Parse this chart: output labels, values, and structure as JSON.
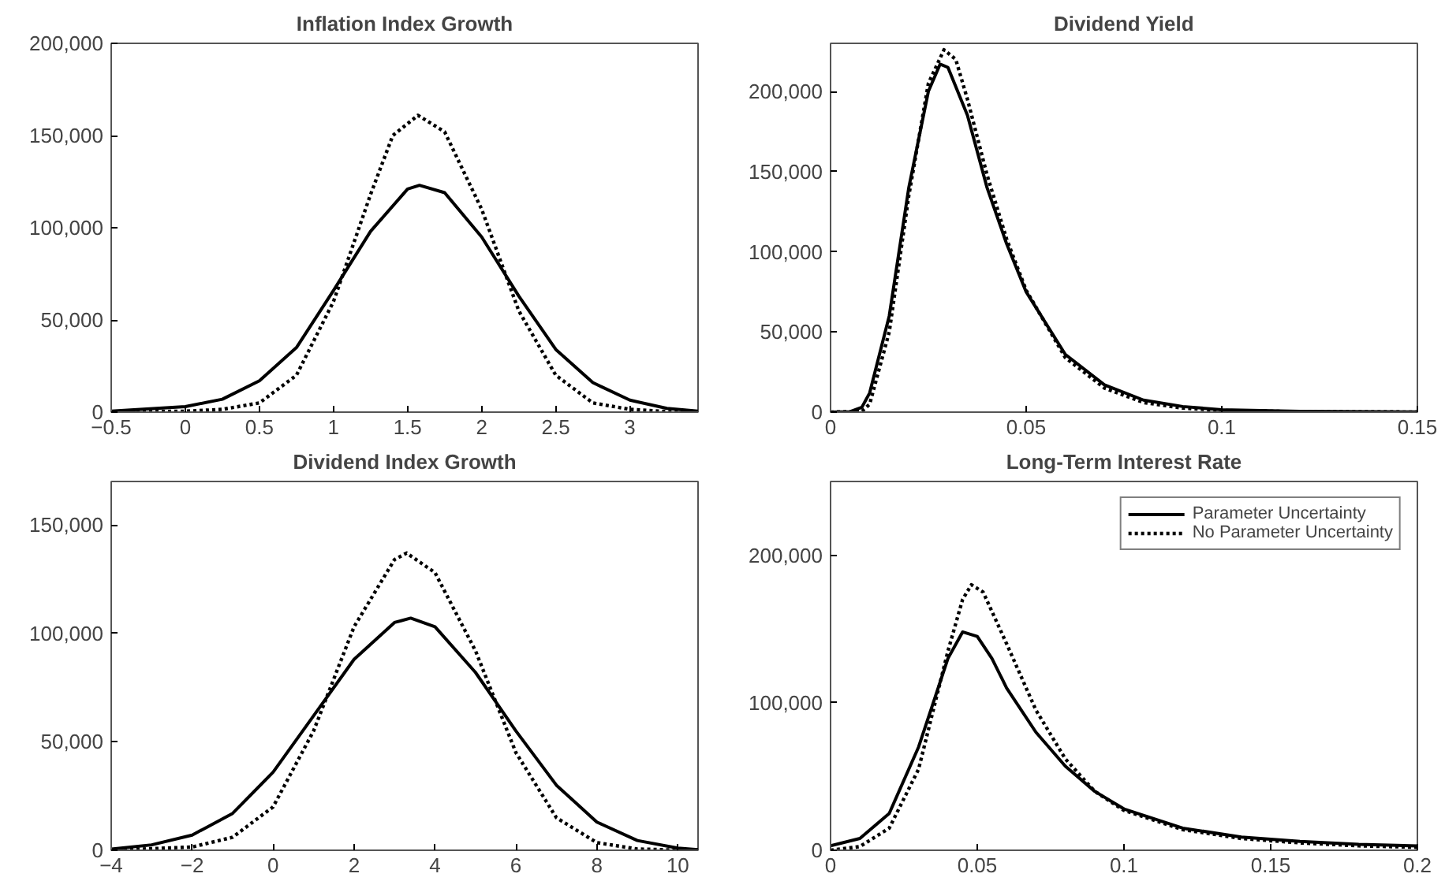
{
  "chart_data": [
    {
      "type": "line",
      "title": "Inflation Index Growth",
      "xlim": [
        -0.5,
        3.46
      ],
      "ylim": [
        0,
        200000
      ],
      "xticks": [
        {
          "value": -0.5,
          "label": "−0.5"
        },
        0,
        0.5,
        1,
        1.5,
        2,
        2.5,
        3
      ],
      "yticks": [
        0,
        {
          "value": 50000,
          "label": "50,000"
        },
        {
          "value": 100000,
          "label": "100,000"
        },
        {
          "value": 150000,
          "label": "150,000"
        },
        {
          "value": 200000,
          "label": "200,000"
        }
      ],
      "grid": false,
      "legend": false,
      "series": [
        {
          "color": "#000000",
          "line_style": "solid",
          "x": [
            -0.5,
            0,
            0.25,
            0.5,
            0.75,
            1,
            1.25,
            1.5,
            1.58,
            1.75,
            2,
            2.25,
            2.5,
            2.75,
            3,
            3.25,
            3.46
          ],
          "values": [
            500,
            3000,
            7000,
            17000,
            35000,
            66000,
            98000,
            121000,
            123000,
            119000,
            95000,
            63000,
            34000,
            16000,
            6500,
            2000,
            500
          ]
        },
        {
          "color": "#000000",
          "line_style": "dotted",
          "x": [
            -0.5,
            0,
            0.25,
            0.5,
            0.75,
            1,
            1.25,
            1.4,
            1.57,
            1.75,
            2,
            2.25,
            2.5,
            2.75,
            3,
            3.25,
            3.46
          ],
          "values": [
            0,
            500,
            1500,
            5000,
            20000,
            60000,
            118000,
            150000,
            161000,
            152000,
            110000,
            55000,
            20000,
            5000,
            1500,
            300,
            0
          ]
        }
      ]
    },
    {
      "type": "line",
      "title": "Dividend Yield",
      "xlim": [
        0,
        0.15
      ],
      "ylim": [
        0,
        230000
      ],
      "xticks": [
        0,
        0.05,
        0.1,
        0.15
      ],
      "yticks": [
        0,
        {
          "value": 50000,
          "label": "50,000"
        },
        {
          "value": 100000,
          "label": "100,000"
        },
        {
          "value": 150000,
          "label": "150,000"
        },
        {
          "value": 200000,
          "label": "200,000"
        }
      ],
      "grid": false,
      "legend": false,
      "series": [
        {
          "color": "#000000",
          "line_style": "solid",
          "x": [
            0,
            0.005,
            0.008,
            0.01,
            0.015,
            0.02,
            0.025,
            0.028,
            0.03,
            0.035,
            0.04,
            0.045,
            0.05,
            0.06,
            0.07,
            0.08,
            0.09,
            0.1,
            0.12,
            0.15
          ],
          "values": [
            0,
            300,
            3000,
            12000,
            60000,
            140000,
            200000,
            217000,
            215000,
            185000,
            140000,
            105000,
            75000,
            36000,
            17000,
            7500,
            3500,
            1500,
            500,
            100
          ]
        },
        {
          "color": "#000000",
          "line_style": "dotted",
          "x": [
            0,
            0.008,
            0.01,
            0.015,
            0.02,
            0.025,
            0.029,
            0.032,
            0.035,
            0.04,
            0.045,
            0.05,
            0.06,
            0.07,
            0.08,
            0.09,
            0.1,
            0.12,
            0.15
          ],
          "values": [
            0,
            500,
            5000,
            50000,
            135000,
            205000,
            226000,
            220000,
            195000,
            148000,
            108000,
            76000,
            34000,
            15000,
            6000,
            2500,
            1000,
            300,
            50
          ]
        }
      ]
    },
    {
      "type": "line",
      "title": "Dividend Index Growth",
      "xlim": [
        -4,
        10.5
      ],
      "ylim": [
        0,
        170000
      ],
      "xticks": [
        {
          "value": -4,
          "label": "−4"
        },
        {
          "value": -2,
          "label": "−2"
        },
        0,
        2,
        4,
        6,
        8,
        10
      ],
      "yticks": [
        0,
        {
          "value": 50000,
          "label": "50,000"
        },
        {
          "value": 100000,
          "label": "100,000"
        },
        {
          "value": 150000,
          "label": "150,000"
        }
      ],
      "grid": false,
      "legend": false,
      "series": [
        {
          "color": "#000000",
          "line_style": "solid",
          "x": [
            -4,
            -3,
            -2,
            -1,
            0,
            1,
            2,
            3,
            3.4,
            4,
            5,
            6,
            7,
            8,
            9,
            10,
            10.5
          ],
          "values": [
            500,
            2500,
            7000,
            17000,
            36000,
            62000,
            88000,
            105000,
            107000,
            103000,
            82000,
            55000,
            30000,
            13000,
            4500,
            1000,
            300
          ]
        },
        {
          "color": "#000000",
          "line_style": "dotted",
          "x": [
            -4,
            -2,
            -1,
            0,
            1,
            2,
            3,
            3.3,
            4,
            5,
            6,
            7,
            8,
            9,
            10,
            10.5
          ],
          "values": [
            0,
            1500,
            6000,
            20000,
            55000,
            103000,
            134000,
            137000,
            128000,
            92000,
            45000,
            15000,
            3500,
            600,
            100,
            0
          ]
        }
      ]
    },
    {
      "type": "line",
      "title": "Long-Term Interest Rate",
      "xlim": [
        0,
        0.2
      ],
      "ylim": [
        0,
        250000
      ],
      "xticks": [
        0,
        0.05,
        0.1,
        0.15,
        0.2
      ],
      "yticks": [
        0,
        {
          "value": 100000,
          "label": "100,000"
        },
        {
          "value": 200000,
          "label": "200,000"
        }
      ],
      "grid": false,
      "legend": "top right",
      "series": [
        {
          "name": "Parameter Uncertainty",
          "color": "#000000",
          "line_style": "solid",
          "x": [
            0,
            0.01,
            0.02,
            0.03,
            0.035,
            0.04,
            0.045,
            0.05,
            0.055,
            0.06,
            0.07,
            0.08,
            0.09,
            0.1,
            0.12,
            0.14,
            0.16,
            0.18,
            0.2
          ],
          "values": [
            3000,
            8000,
            25000,
            70000,
            100000,
            130000,
            148000,
            145000,
            130000,
            110000,
            80000,
            57000,
            40000,
            28000,
            15000,
            9000,
            6000,
            4000,
            3000
          ]
        },
        {
          "name": "No Parameter Uncertainty",
          "color": "#000000",
          "line_style": "dotted",
          "x": [
            0,
            0.01,
            0.02,
            0.03,
            0.035,
            0.04,
            0.045,
            0.048,
            0.052,
            0.06,
            0.07,
            0.08,
            0.09,
            0.1,
            0.12,
            0.14,
            0.16,
            0.18,
            0.2
          ],
          "values": [
            0,
            2500,
            15000,
            55000,
            95000,
            135000,
            170000,
            180000,
            175000,
            140000,
            95000,
            62000,
            40000,
            27000,
            14000,
            8000,
            5000,
            3000,
            2000
          ]
        }
      ]
    }
  ]
}
